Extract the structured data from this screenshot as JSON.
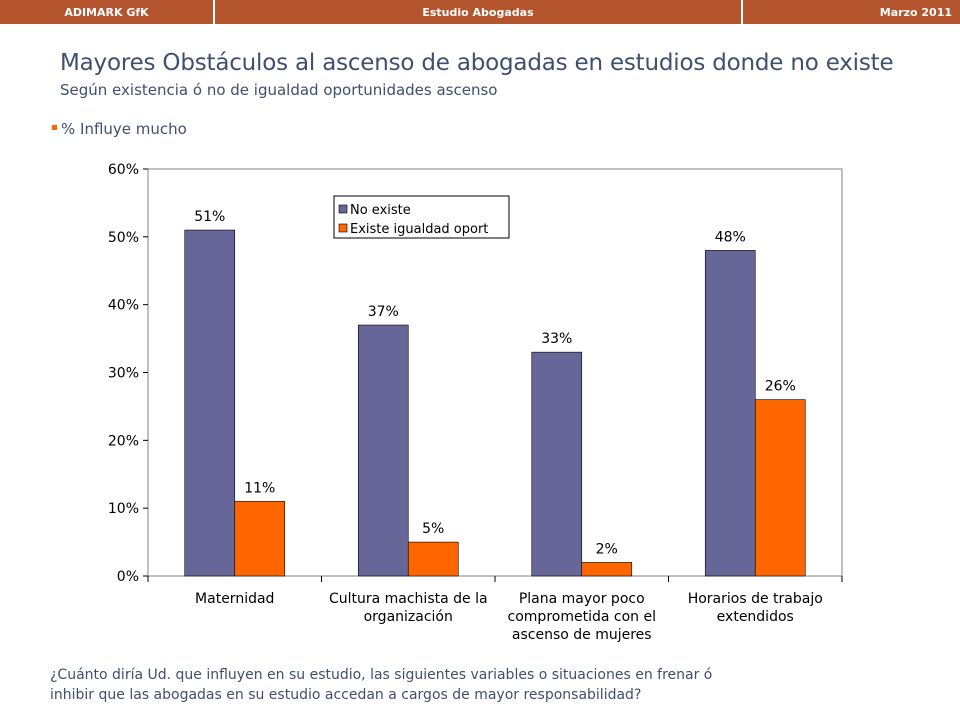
{
  "header": {
    "left": "ADIMARK GfK",
    "center": "Estudio Abogadas",
    "right": "Marzo 2011"
  },
  "title": "Mayores Obstáculos al ascenso de abogadas en estudios donde no existe",
  "subtitle": "Según existencia ó no de igualdad oportunidades ascenso",
  "bullet": "% Influye mucho",
  "question": "¿Cuánto diría Ud. que influyen en su estudio, las siguientes variables o situaciones  en frenar ó inhibir que las abogadas en su estudio accedan a cargos de mayor responsabilidad?",
  "colors": {
    "header_bg": "#b4552e",
    "text": "#3f4f6f",
    "series_no_existe": "#666699",
    "series_existe": "#ff6600"
  },
  "chart_data": {
    "type": "bar",
    "categories": [
      [
        "Maternidad"
      ],
      [
        "Cultura machista de la",
        "organización"
      ],
      [
        "Plana mayor poco",
        "comprometida con el",
        "ascenso de mujeres"
      ],
      [
        "Horarios de trabajo",
        "extendidos"
      ]
    ],
    "series": [
      {
        "name": "No existe",
        "color": "#666699",
        "values": [
          51,
          37,
          33,
          48
        ],
        "labels": [
          "51%",
          "37%",
          "33%",
          "48%"
        ]
      },
      {
        "name": "Existe igualdad oport",
        "color": "#ff6600",
        "values": [
          11,
          5,
          2,
          26
        ],
        "labels": [
          "11%",
          "5%",
          "2%",
          "26%"
        ]
      }
    ],
    "y_ticks": [
      "0%",
      "10%",
      "20%",
      "30%",
      "40%",
      "50%",
      "60%"
    ],
    "ylim": [
      0,
      60
    ],
    "grid": false,
    "legend_position": "top-center"
  }
}
